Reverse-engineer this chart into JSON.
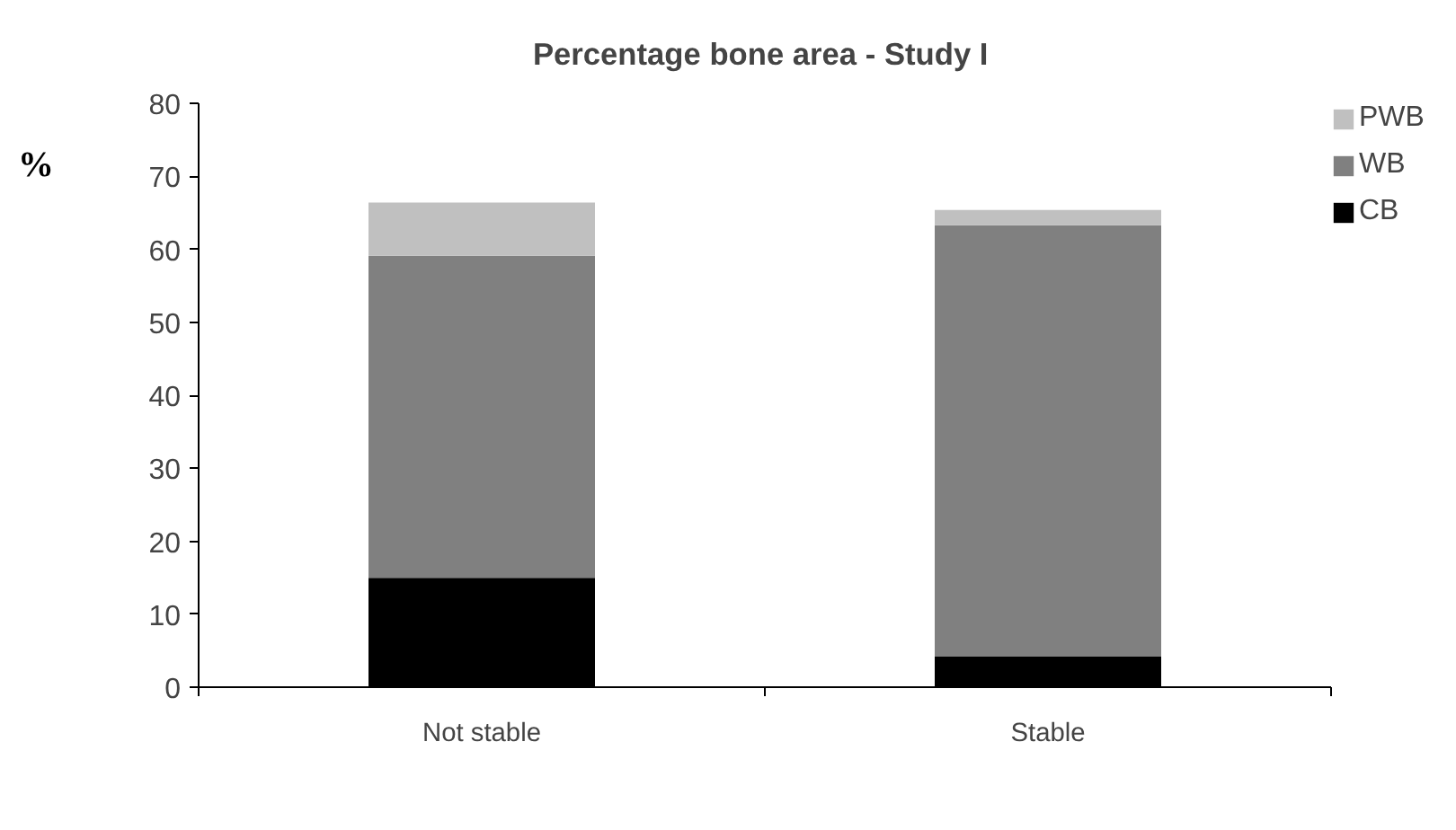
{
  "chart_data": {
    "type": "bar",
    "title": "Percentage bone area -  Study I",
    "ylabel": "%",
    "categories": [
      "Not stable",
      "Stable"
    ],
    "stacked": true,
    "series": [
      {
        "name": "CB",
        "color": "#000000",
        "values": [
          15.0,
          4.2
        ]
      },
      {
        "name": "WB",
        "color": "#808080",
        "values": [
          44.1,
          59.1
        ]
      },
      {
        "name": "PWB",
        "color": "#c0c0c0",
        "values": [
          7.3,
          2.1
        ]
      }
    ],
    "ylim": [
      0,
      80
    ],
    "yticks": [
      0,
      10,
      20,
      30,
      40,
      50,
      60,
      70,
      80
    ],
    "grid": false,
    "legend": "top right"
  }
}
